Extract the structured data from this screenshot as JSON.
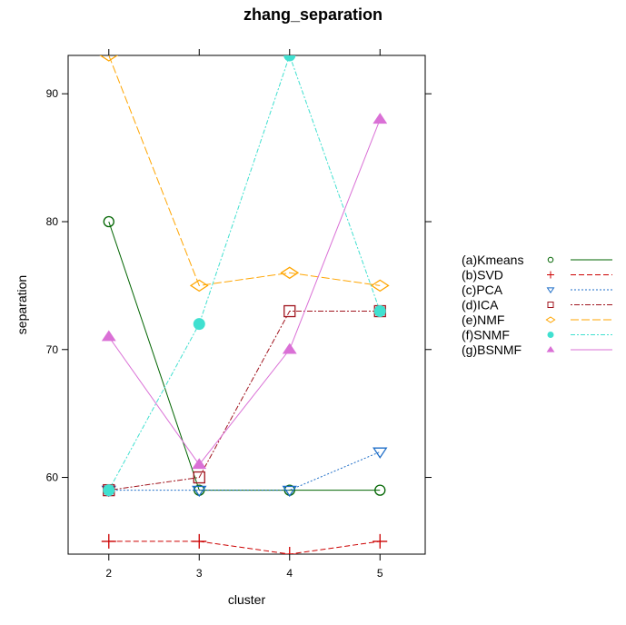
{
  "chart_data": {
    "type": "line",
    "title": "zhang_separation",
    "xlabel": "cluster",
    "ylabel": "separation",
    "x": [
      2,
      3,
      4,
      5
    ],
    "xlim": [
      1.55,
      5.5
    ],
    "ylim": [
      54,
      93
    ],
    "xticks": [
      2,
      3,
      4,
      5
    ],
    "yticks": [
      60,
      70,
      80,
      90
    ],
    "grid": false,
    "legend_position": "right",
    "series": [
      {
        "name": "(a)Kmeans",
        "values": [
          80,
          59,
          59,
          59
        ],
        "color": "#006400",
        "marker": "circle-open",
        "dash": "solid"
      },
      {
        "name": "(b)SVD",
        "values": [
          55,
          55,
          54,
          55
        ],
        "color": "#cc0000",
        "marker": "plus",
        "dash": "dashed"
      },
      {
        "name": "(c)PCA",
        "values": [
          59,
          59,
          59,
          62
        ],
        "color": "#1e6ec8",
        "marker": "triangle-down-open",
        "dash": "dotted"
      },
      {
        "name": "(d)ICA",
        "values": [
          59,
          60,
          73,
          73
        ],
        "color": "#a0141e",
        "marker": "square-open",
        "dash": "dotdash"
      },
      {
        "name": "(e)NMF",
        "values": [
          93,
          75,
          76,
          75
        ],
        "color": "#ffa500",
        "marker": "diamond-open",
        "dash": "longdash"
      },
      {
        "name": "(f)SNMF",
        "values": [
          59,
          72,
          93,
          73
        ],
        "color": "#40e0d0",
        "marker": "circle-filled",
        "dash": "twodash"
      },
      {
        "name": "(g)BSNMF",
        "values": [
          71,
          61,
          70,
          88
        ],
        "color": "#da70d6",
        "marker": "triangle-up-filled",
        "dash": "solid"
      }
    ]
  }
}
